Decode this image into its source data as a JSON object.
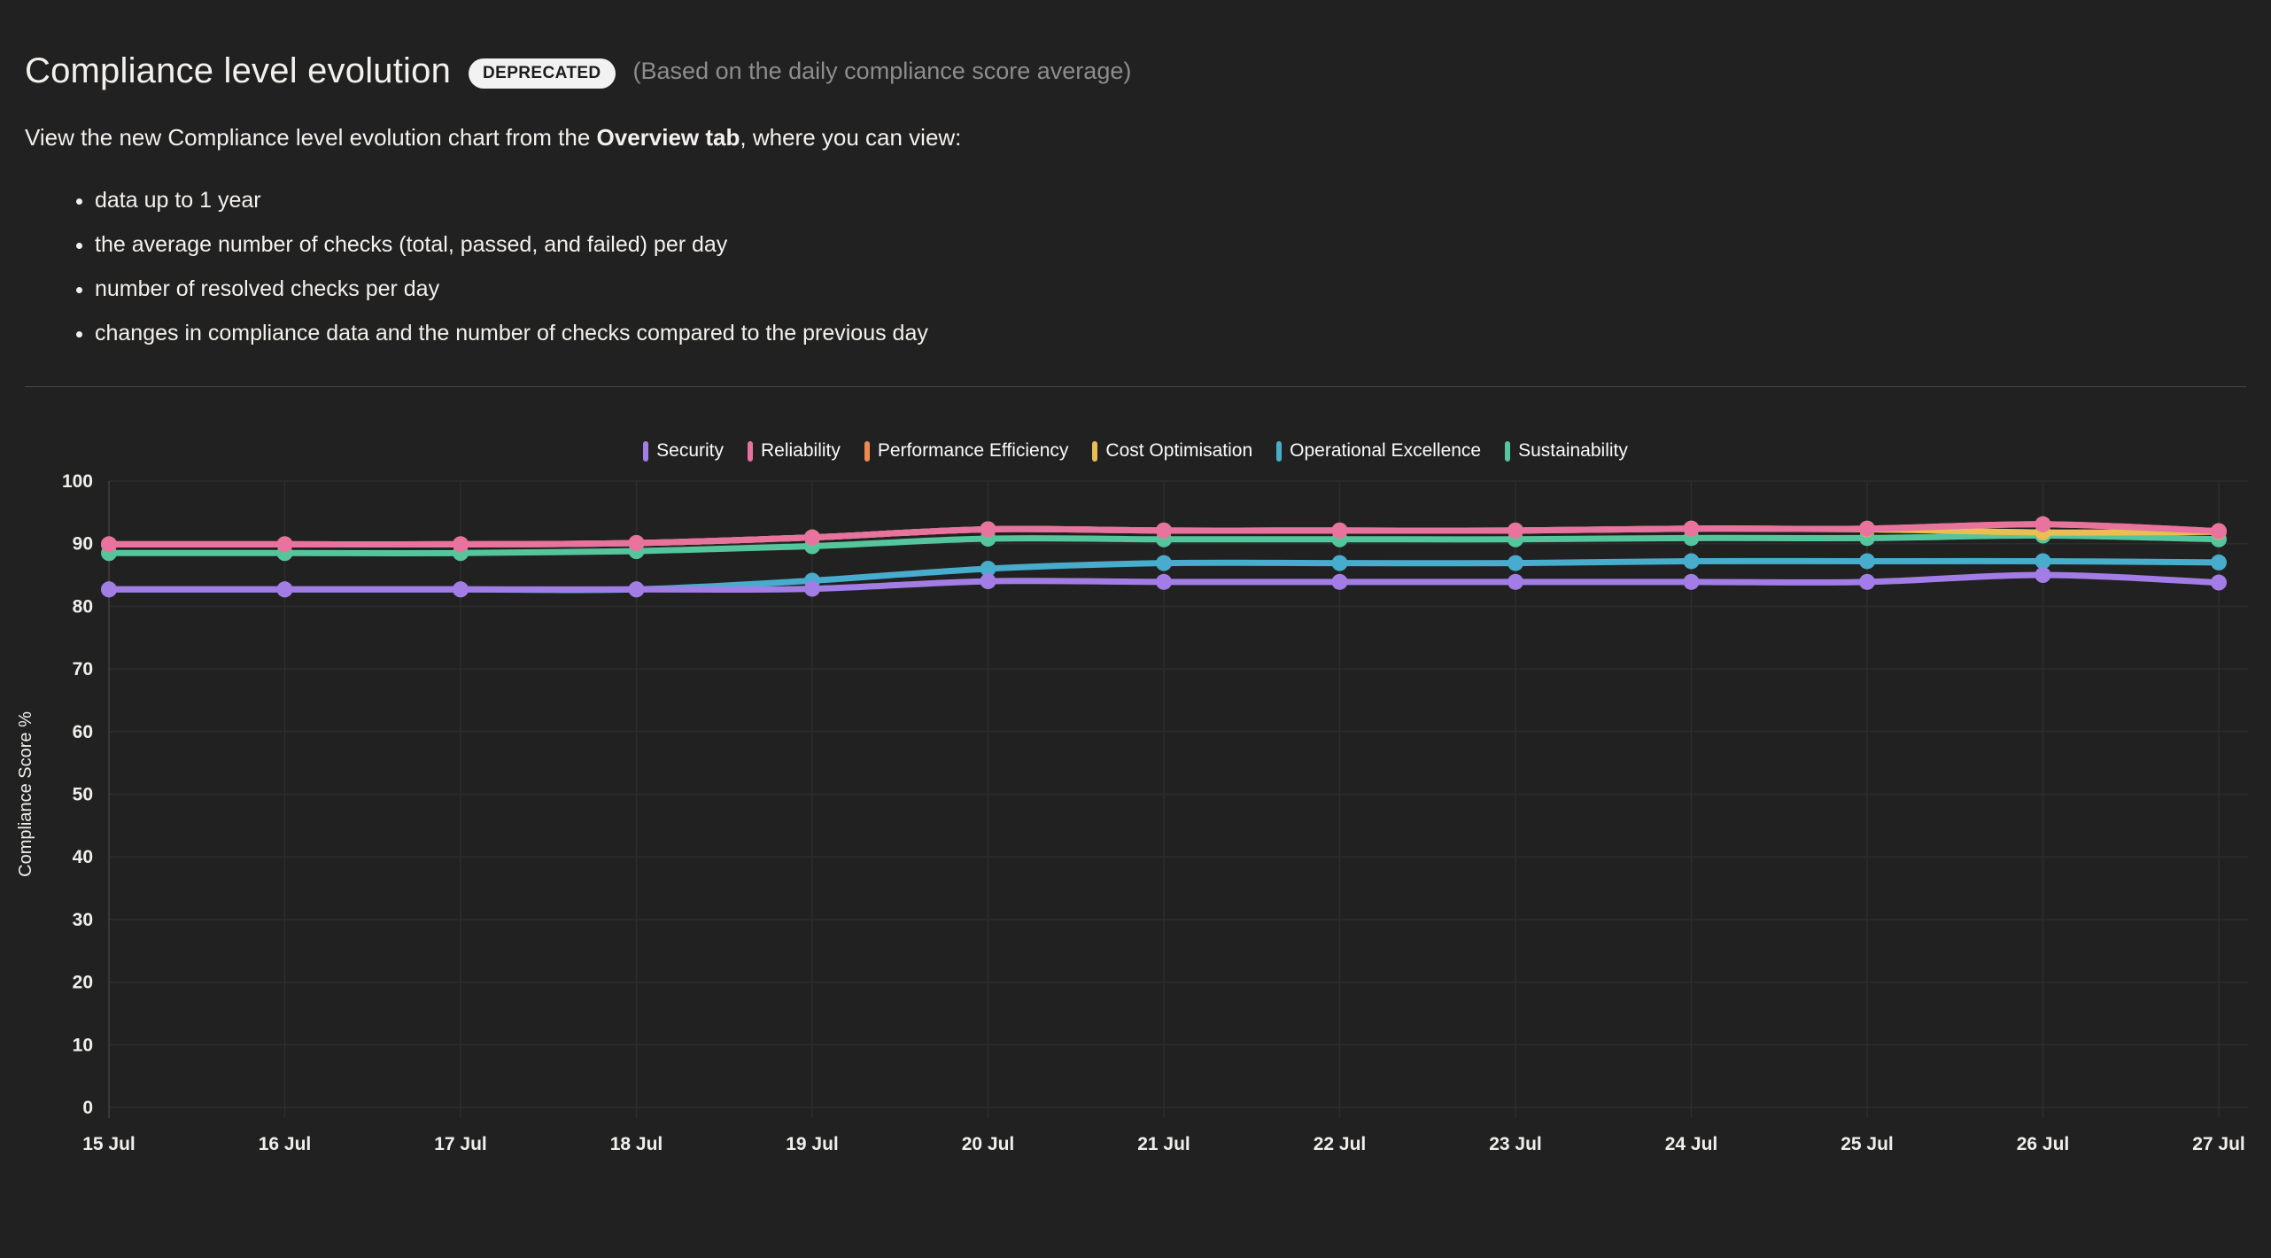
{
  "page": {
    "background": "#212121"
  },
  "header": {
    "title": "Compliance level evolution",
    "badge": "DEPRECATED",
    "subtitle": "(Based on the daily compliance score average)",
    "intro_prefix": "View the new Compliance level evolution chart from the ",
    "intro_bold": "Overview tab",
    "intro_suffix": ", where you can view:",
    "bullets": [
      "data up to 1 year",
      "the average number of checks (total, passed, and failed) per day",
      "number of resolved checks per day",
      "changes in compliance data and the number of checks compared to the previous day"
    ]
  },
  "chart_data": {
    "type": "line",
    "title": "",
    "xlabel": "",
    "ylabel": "Compliance Score %",
    "ylim": [
      0,
      100
    ],
    "y_ticks": [
      0,
      10,
      20,
      30,
      40,
      50,
      60,
      70,
      80,
      90,
      100
    ],
    "grid": true,
    "legend_position": "top",
    "categories": [
      "15 Jul",
      "16 Jul",
      "17 Jul",
      "18 Jul",
      "19 Jul",
      "20 Jul",
      "21 Jul",
      "22 Jul",
      "23 Jul",
      "24 Jul",
      "25 Jul",
      "26 Jul",
      "27 Jul"
    ],
    "series": [
      {
        "name": "Security",
        "slug": "security",
        "color": "#a37de6",
        "values": [
          82.7,
          82.7,
          82.7,
          82.7,
          82.8,
          84.0,
          83.9,
          83.9,
          83.9,
          83.9,
          83.9,
          85.0,
          83.8
        ]
      },
      {
        "name": "Reliability",
        "slug": "reliability",
        "color": "#e7739e",
        "values": [
          89.9,
          89.9,
          89.9,
          90.1,
          91.0,
          92.3,
          92.1,
          92.1,
          92.1,
          92.4,
          92.4,
          93.1,
          92.0
        ]
      },
      {
        "name": "Performance Efficiency",
        "slug": "performance-efficiency",
        "color": "#ee8a4e",
        "values": [
          89.9,
          89.9,
          89.9,
          90.1,
          91.0,
          92.3,
          92.1,
          92.1,
          92.1,
          92.4,
          92.4,
          93.1,
          92.0
        ]
      },
      {
        "name": "Cost Optimisation",
        "slug": "cost-optimisation",
        "color": "#e9be52",
        "values": [
          89.9,
          89.9,
          89.9,
          90.1,
          91.0,
          92.3,
          92.1,
          92.1,
          92.1,
          92.4,
          92.3,
          91.8,
          91.9
        ]
      },
      {
        "name": "Operational Excellence",
        "slug": "operational-excellence",
        "color": "#48accc",
        "values": [
          82.7,
          82.7,
          82.7,
          82.7,
          84.1,
          86.0,
          86.9,
          86.9,
          86.9,
          87.2,
          87.2,
          87.2,
          87.0
        ]
      },
      {
        "name": "Sustainability",
        "slug": "sustainability",
        "color": "#55c59d",
        "values": [
          88.5,
          88.5,
          88.5,
          88.8,
          89.6,
          90.8,
          90.7,
          90.7,
          90.7,
          90.9,
          90.9,
          91.3,
          90.7
        ]
      }
    ],
    "style": {
      "grid_color": "#2d2d2d",
      "axis_color": "#3f3f3f",
      "tick_color": "#f0efed",
      "line_width": 7,
      "point_radius": 9
    }
  }
}
